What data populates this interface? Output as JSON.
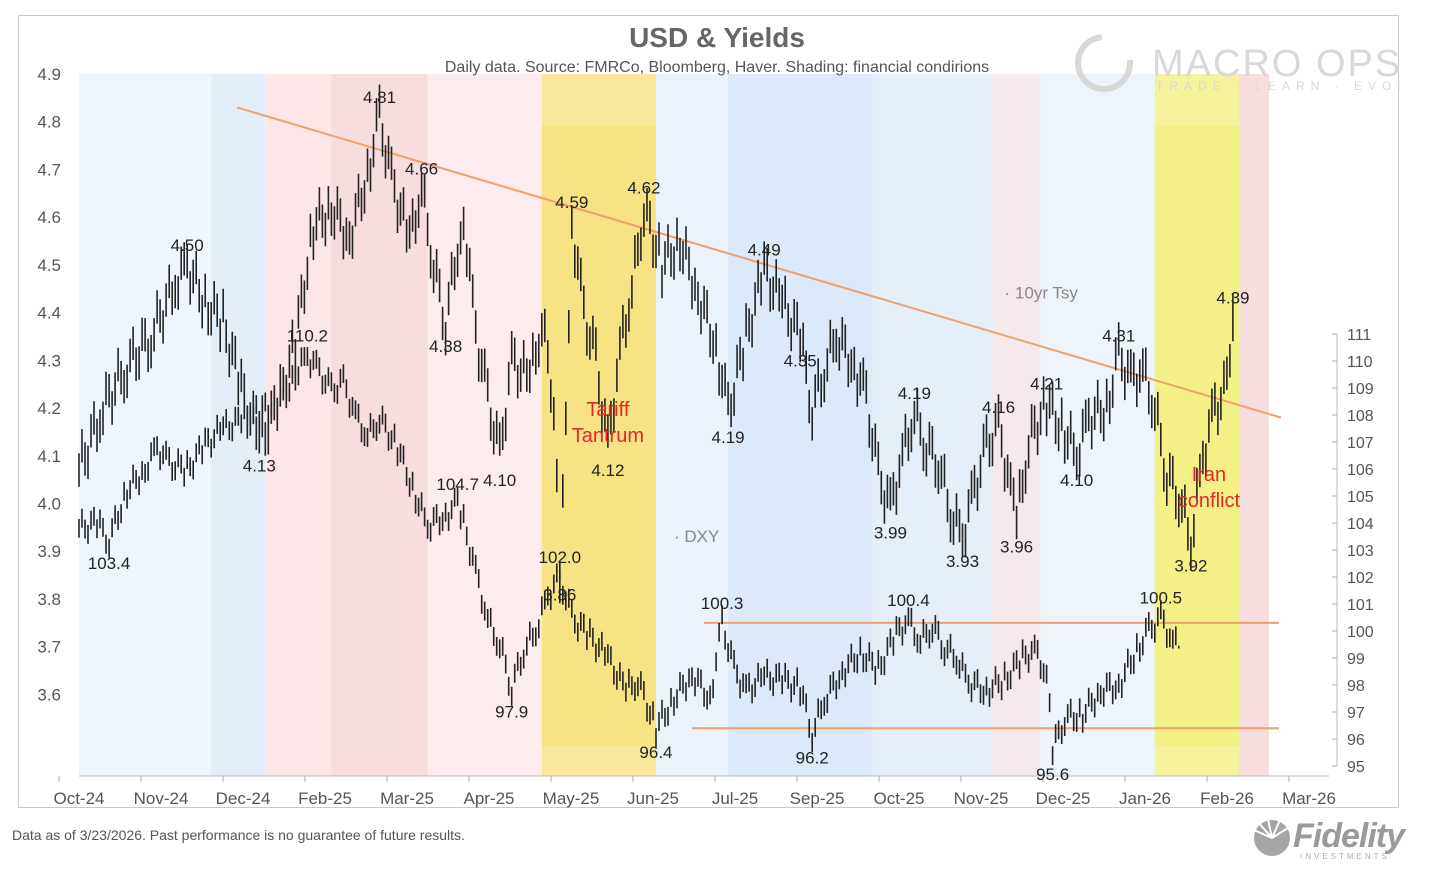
{
  "chart_data": {
    "type": "line",
    "title": "USD & Yields",
    "subtitle": "Daily data.  Source: FMRCo, Bloomberg, Haver.  Shading: financial condirions",
    "categories": [
      "Oct-24",
      "Nov-24",
      "Dec-24",
      "Feb-25",
      "Mar-25",
      "Apr-25",
      "May-25",
      "Jun-25",
      "Jul-25",
      "Sep-25",
      "Oct-25",
      "Nov-25",
      "Dec-25",
      "Jan-26",
      "Feb-26",
      "Mar-26"
    ],
    "left_axis": {
      "label": "10yr Tsy",
      "ylim": [
        3.45,
        4.9
      ],
      "ticks": [
        "4.9",
        "4.8",
        "4.7",
        "4.6",
        "4.5",
        "4.4",
        "4.3",
        "4.2",
        "4.1",
        "4.0",
        "3.9",
        "3.8",
        "3.7",
        "3.6"
      ]
    },
    "right_axis": {
      "label": "DXY",
      "ylim": [
        95,
        111
      ],
      "ticks": [
        "111",
        "110",
        "109",
        "108",
        "107",
        "106",
        "105",
        "104",
        "103",
        "102",
        "101",
        "100",
        "99",
        "98",
        "97",
        "96",
        "95"
      ]
    },
    "series": [
      {
        "name": "10yr Tsy",
        "axis": "left",
        "points": [
          [
            0,
            4.07
          ],
          [
            4,
            4.2
          ],
          [
            8,
            4.29
          ],
          [
            12,
            4.35
          ],
          [
            16,
            4.46
          ],
          [
            18,
            4.5
          ],
          [
            21,
            4.42
          ],
          [
            24,
            4.38
          ],
          [
            27,
            4.24
          ],
          [
            30,
            4.13
          ],
          [
            33,
            4.2
          ],
          [
            36,
            4.34
          ],
          [
            39,
            4.58
          ],
          [
            42,
            4.62
          ],
          [
            45,
            4.56
          ],
          [
            48,
            4.69
          ],
          [
            50,
            4.81
          ],
          [
            52,
            4.68
          ],
          [
            55,
            4.55
          ],
          [
            57,
            4.66
          ],
          [
            59,
            4.5
          ],
          [
            61,
            4.38
          ],
          [
            63,
            4.54
          ],
          [
            64,
            4.6
          ],
          [
            66,
            4.36
          ],
          [
            68,
            4.22
          ],
          [
            70,
            4.1
          ],
          [
            72,
            4.3
          ],
          [
            75,
            4.26
          ],
          [
            77,
            4.38
          ],
          [
            79,
            4.22
          ],
          [
            80,
            3.86
          ],
          [
            81,
            4.2
          ],
          [
            82,
            4.59
          ],
          [
            84,
            4.4
          ],
          [
            86,
            4.3
          ],
          [
            88,
            4.12
          ],
          [
            90,
            4.32
          ],
          [
            92,
            4.45
          ],
          [
            94,
            4.62
          ],
          [
            97,
            4.5
          ],
          [
            100,
            4.55
          ],
          [
            103,
            4.44
          ],
          [
            106,
            4.33
          ],
          [
            108,
            4.19
          ],
          [
            111,
            4.35
          ],
          [
            114,
            4.49
          ],
          [
            117,
            4.42
          ],
          [
            120,
            4.35
          ],
          [
            122,
            4.2
          ],
          [
            124,
            4.28
          ],
          [
            126,
            4.35
          ],
          [
            129,
            4.29
          ],
          [
            131,
            4.22
          ],
          [
            133,
            4.06
          ],
          [
            135,
            3.99
          ],
          [
            137,
            4.1
          ],
          [
            139,
            4.19
          ],
          [
            141,
            4.12
          ],
          [
            143,
            4.09
          ],
          [
            145,
            3.98
          ],
          [
            147,
            3.93
          ],
          [
            149,
            4.03
          ],
          [
            151,
            4.12
          ],
          [
            153,
            4.16
          ],
          [
            155,
            4.03
          ],
          [
            156,
            3.96
          ],
          [
            158,
            4.13
          ],
          [
            161,
            4.21
          ],
          [
            164,
            4.15
          ],
          [
            166,
            4.1
          ],
          [
            168,
            4.18
          ],
          [
            171,
            4.2
          ],
          [
            173,
            4.31
          ],
          [
            175,
            4.26
          ],
          [
            177,
            4.28
          ],
          [
            179,
            4.2
          ],
          [
            181,
            4.06
          ],
          [
            183,
            4.02
          ],
          [
            185,
            3.92
          ],
          [
            187,
            4.1
          ],
          [
            189,
            4.2
          ],
          [
            191,
            4.24
          ],
          [
            192,
            4.39
          ]
        ],
        "labels": [
          [
            "4.50",
            18,
            4.5
          ],
          [
            "4.81",
            50,
            4.81
          ],
          [
            "4.66",
            57,
            4.66
          ],
          [
            "4.59",
            82,
            4.59
          ],
          [
            "4.62",
            94,
            4.62
          ],
          [
            "4.49",
            114,
            4.49
          ],
          [
            "4.35",
            120,
            4.35
          ],
          [
            "4.19",
            139,
            4.19
          ],
          [
            "4.16",
            153,
            4.16
          ],
          [
            "4.21",
            161,
            4.21
          ],
          [
            "4.31",
            173,
            4.31
          ],
          [
            "4.39",
            192,
            4.39
          ],
          [
            "4.13",
            30,
            4.13
          ],
          [
            "4.38",
            61,
            4.38
          ],
          [
            "4.10",
            70,
            4.1
          ],
          [
            "3.86",
            80,
            3.86
          ],
          [
            "4.12",
            88,
            4.12
          ],
          [
            "4.19",
            108,
            4.19
          ],
          [
            "3.99",
            135,
            3.99
          ],
          [
            "3.93",
            147,
            3.93
          ],
          [
            "3.96",
            156,
            3.96
          ],
          [
            "4.10",
            166,
            4.1
          ],
          [
            "3.92",
            185,
            3.92
          ]
        ]
      },
      {
        "name": "DXY",
        "axis": "right",
        "points": [
          [
            0,
            103.8
          ],
          [
            3,
            104.0
          ],
          [
            5,
            103.4
          ],
          [
            8,
            105.2
          ],
          [
            11,
            106.0
          ],
          [
            13,
            106.8
          ],
          [
            15,
            106.2
          ],
          [
            18,
            106.0
          ],
          [
            21,
            106.9
          ],
          [
            24,
            107.5
          ],
          [
            27,
            107.8
          ],
          [
            30,
            108.1
          ],
          [
            33,
            108.5
          ],
          [
            36,
            109.5
          ],
          [
            38,
            110.2
          ],
          [
            40,
            109.6
          ],
          [
            42,
            108.9
          ],
          [
            44,
            109.2
          ],
          [
            46,
            108.0
          ],
          [
            48,
            107.2
          ],
          [
            50,
            107.9
          ],
          [
            53,
            106.8
          ],
          [
            56,
            105.0
          ],
          [
            58,
            103.9
          ],
          [
            61,
            104.3
          ],
          [
            63,
            104.7
          ],
          [
            64,
            104.0
          ],
          [
            66,
            102.2
          ],
          [
            68,
            100.4
          ],
          [
            70,
            99.5
          ],
          [
            72,
            97.9
          ],
          [
            74,
            99.3
          ],
          [
            76,
            100.0
          ],
          [
            78,
            101.3
          ],
          [
            80,
            102.0
          ],
          [
            82,
            100.5
          ],
          [
            85,
            99.8
          ],
          [
            88,
            99.0
          ],
          [
            91,
            97.8
          ],
          [
            93,
            98.2
          ],
          [
            96,
            96.4
          ],
          [
            99,
            97.5
          ],
          [
            102,
            98.4
          ],
          [
            105,
            97.5
          ],
          [
            107,
            100.3
          ],
          [
            109,
            98.6
          ],
          [
            111,
            97.8
          ],
          [
            114,
            98.3
          ],
          [
            117,
            98.2
          ],
          [
            120,
            97.9
          ],
          [
            122,
            96.2
          ],
          [
            124,
            97.4
          ],
          [
            127,
            98.5
          ],
          [
            130,
            99.2
          ],
          [
            133,
            98.6
          ],
          [
            136,
            99.9
          ],
          [
            138,
            100.4
          ],
          [
            140,
            99.6
          ],
          [
            142,
            100.2
          ],
          [
            144,
            99.4
          ],
          [
            146,
            99.0
          ],
          [
            148,
            98.1
          ],
          [
            151,
            97.8
          ],
          [
            154,
            98.2
          ],
          [
            157,
            99.0
          ],
          [
            159,
            99.3
          ],
          [
            161,
            98.4
          ],
          [
            162,
            95.6
          ],
          [
            164,
            96.8
          ],
          [
            167,
            96.9
          ],
          [
            170,
            97.8
          ],
          [
            173,
            98.0
          ],
          [
            176,
            99.3
          ],
          [
            178,
            100.0
          ],
          [
            180,
            100.5
          ],
          [
            182,
            99.6
          ],
          [
            183,
            99.4
          ]
        ],
        "labels": [
          [
            "103.4",
            5,
            103.4
          ],
          [
            "110.2",
            38,
            110.2
          ],
          [
            "104.7",
            63,
            104.7
          ],
          [
            "102.0",
            80,
            102.0
          ],
          [
            "97.9",
            72,
            97.9
          ],
          [
            "96.4",
            96,
            96.4
          ],
          [
            "100.3",
            107,
            100.3
          ],
          [
            "96.2",
            122,
            96.2
          ],
          [
            "100.4",
            138,
            100.4
          ],
          [
            "95.6",
            162,
            95.6
          ],
          [
            "100.5",
            180,
            100.5
          ]
        ]
      }
    ],
    "trendline_10yr": [
      [
        -2,
        4.83
      ],
      [
        200,
        4.18
      ]
    ],
    "dxy_range_lines": [
      100.3,
      96.4
    ],
    "annotations": [
      {
        "text": [
          "Tariff",
          "Tantrum"
        ],
        "color": "#e5262a"
      },
      {
        "text": [
          "Iran",
          "conflict"
        ],
        "color": "#e5262a"
      }
    ],
    "highlight_periods": [
      {
        "name": "Tariff Tantrum",
        "start": 77,
        "end": 96,
        "color": "#f7e07a"
      },
      {
        "name": "Iran conflict",
        "start": 179,
        "end": 193,
        "color": "#f2f07c"
      }
    ],
    "shading_bands": [
      {
        "start": 0,
        "end": 22,
        "color": "#eaf2fb"
      },
      {
        "start": 22,
        "end": 31,
        "color": "#d9e8f7"
      },
      {
        "start": 31,
        "end": 42,
        "color": "#f9dfe0"
      },
      {
        "start": 42,
        "end": 58,
        "color": "#f6d2d4"
      },
      {
        "start": 58,
        "end": 77,
        "color": "#fbe6e7"
      },
      {
        "start": 77,
        "end": 96,
        "color": "#f7e07a"
      },
      {
        "start": 96,
        "end": 108,
        "color": "#e3eef9"
      },
      {
        "start": 108,
        "end": 132,
        "color": "#cfe2f6"
      },
      {
        "start": 132,
        "end": 152,
        "color": "#dbe9f7"
      },
      {
        "start": 152,
        "end": 160,
        "color": "#f3e1e4"
      },
      {
        "start": 160,
        "end": 179,
        "color": "#e7f0f9"
      },
      {
        "start": 179,
        "end": 193,
        "color": "#f2f07c"
      },
      {
        "start": 193,
        "end": 198,
        "color": "#f6d2d4"
      }
    ],
    "xlabel": "",
    "ylabel": "",
    "grid": false
  },
  "branding": {
    "macro_ops": "MACRO OPS",
    "macro_ops_tagline": "TRADE · LEARN · EVOLVE",
    "fidelity": "Fidelity",
    "fidelity_sub": "INVESTMENTS"
  },
  "footnote": "Data as of 3/23/2026. Past performance is no guarantee of future results."
}
